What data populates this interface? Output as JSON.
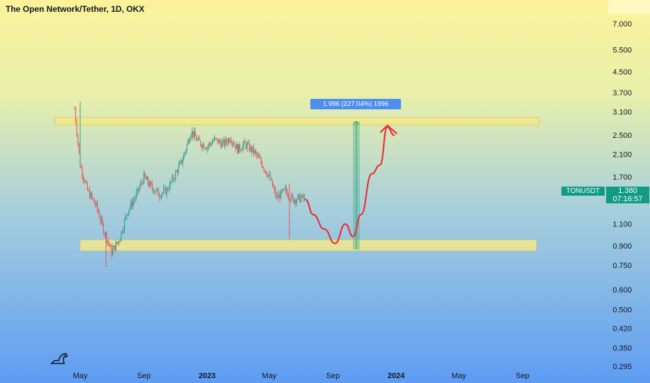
{
  "chart_data": {
    "type": "candlestick",
    "title": "The Open Network/Tether, 1D, OKX",
    "symbol": "TONUSDT",
    "last_price": "1.380",
    "countdown": "07:16:57",
    "y_scale": "log",
    "ylim": [
      0.27,
      8.5
    ],
    "y_ticks": [
      "7.000",
      "5.500",
      "4.500",
      "3.700",
      "3.100",
      "2.500",
      "2.100",
      "1.700",
      "1.100",
      "0.900",
      "0.750",
      "0.600",
      "0.500",
      "0.420",
      "0.350",
      "0.295"
    ],
    "x_ticks": [
      "May",
      "Sep",
      "2023",
      "May",
      "Sep",
      "2024",
      "May",
      "Sep"
    ],
    "measure_label": "1.996 (227.04%) 1996",
    "zones": [
      {
        "name": "resistance",
        "low": 2.75,
        "high": 2.95
      },
      {
        "name": "support",
        "low": 0.86,
        "high": 0.95
      }
    ],
    "series": [
      {
        "name": "price",
        "x": [
          "2022-04-20",
          "2022-05-01",
          "2022-05-15",
          "2022-06-01",
          "2022-06-15",
          "2022-07-01",
          "2022-07-15",
          "2022-08-01",
          "2022-08-15",
          "2022-09-01",
          "2022-09-15",
          "2022-10-01",
          "2022-10-15",
          "2022-11-01",
          "2022-11-15",
          "2022-12-01",
          "2022-12-15",
          "2023-01-01",
          "2023-01-15",
          "2023-02-01",
          "2023-02-15",
          "2023-03-01",
          "2023-03-15",
          "2023-04-01",
          "2023-04-15",
          "2023-05-01",
          "2023-05-15",
          "2023-06-01",
          "2023-06-15",
          "2023-07-01",
          "2023-07-10"
        ],
        "y": [
          3.2,
          1.9,
          1.5,
          1.3,
          1.05,
          0.85,
          0.95,
          1.25,
          1.4,
          1.7,
          1.55,
          1.45,
          1.5,
          1.75,
          2.0,
          2.6,
          2.35,
          2.25,
          2.4,
          2.3,
          2.45,
          2.2,
          2.3,
          2.15,
          1.95,
          1.7,
          1.4,
          1.5,
          1.38,
          1.4,
          1.38
        ]
      },
      {
        "name": "projection",
        "x": [
          "2023-07-10",
          "2023-07-25",
          "2023-08-15",
          "2023-09-05",
          "2023-09-25",
          "2023-10-10",
          "2023-10-25",
          "2023-11-15",
          "2023-12-01",
          "2023-12-15",
          "2023-12-28"
        ],
        "y": [
          1.38,
          1.2,
          1.05,
          0.92,
          1.1,
          0.98,
          1.2,
          1.75,
          1.9,
          2.7,
          2.5
        ]
      }
    ],
    "grid": false
  }
}
